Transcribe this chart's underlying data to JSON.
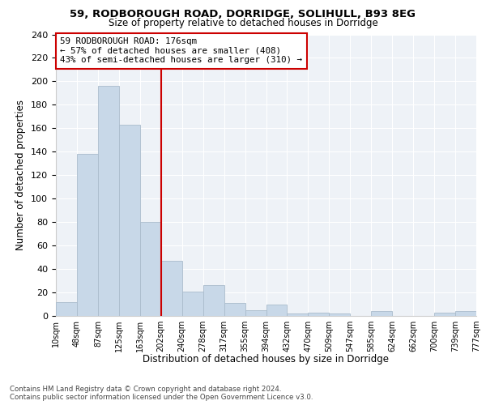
{
  "title1": "59, RODBOROUGH ROAD, DORRIDGE, SOLIHULL, B93 8EG",
  "title2": "Size of property relative to detached houses in Dorridge",
  "xlabel": "Distribution of detached houses by size in Dorridge",
  "ylabel": "Number of detached properties",
  "bar_heights": [
    12,
    138,
    196,
    163,
    80,
    47,
    21,
    26,
    11,
    5,
    10,
    2,
    3,
    2,
    0,
    4,
    0,
    0,
    3,
    4
  ],
  "bar_color": "#c8d8e8",
  "bar_edge_color": "#aabccc",
  "annotation_text_line1": "59 RODBOROUGH ROAD: 176sqm",
  "annotation_text_line2": "← 57% of detached houses are smaller (408)",
  "annotation_text_line3": "43% of semi-detached houses are larger (310) →",
  "annotation_box_color": "#cc0000",
  "ylim": [
    0,
    240
  ],
  "yticks": [
    0,
    20,
    40,
    60,
    80,
    100,
    120,
    140,
    160,
    180,
    200,
    220,
    240
  ],
  "tick_labels": [
    "10sqm",
    "48sqm",
    "87sqm",
    "125sqm",
    "163sqm",
    "202sqm",
    "240sqm",
    "278sqm",
    "317sqm",
    "355sqm",
    "394sqm",
    "432sqm",
    "470sqm",
    "509sqm",
    "547sqm",
    "585sqm",
    "624sqm",
    "662sqm",
    "700sqm",
    "739sqm",
    "777sqm"
  ],
  "footer1": "Contains HM Land Registry data © Crown copyright and database right 2024.",
  "footer2": "Contains public sector information licensed under the Open Government Licence v3.0.",
  "bg_color": "#eef2f7",
  "grid_color": "#ffffff"
}
